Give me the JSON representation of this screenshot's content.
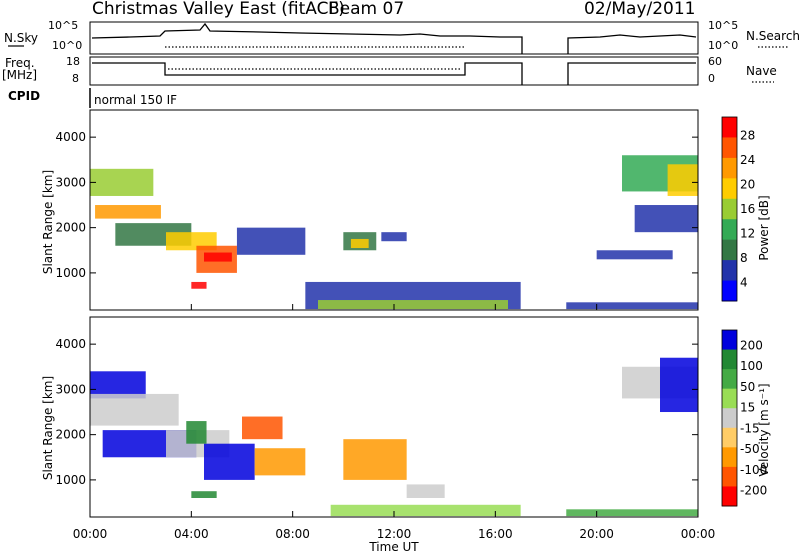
{
  "header": {
    "title": "Christmas Valley East (fitACF)",
    "beam": "Beam 07",
    "date": "02/May/2011"
  },
  "top_panels": {
    "nsky_label": "N.Sky",
    "nsky_ticks": [
      "10^5",
      "10^0"
    ],
    "nsearch_label": "N.Search",
    "nsearch_ticks": [
      "10^5",
      "10^0"
    ],
    "freq_label": "Freq.",
    "freq_unit": "[MHz]",
    "freq_ticks": [
      "18",
      "8"
    ],
    "nave_label": "Nave",
    "nave_ticks": [
      "60",
      "0"
    ],
    "cpid_label": "CPID",
    "cpid_value": "normal 150 IF"
  },
  "chart_data": [
    {
      "type": "heatmap",
      "panel": "power",
      "xlabel": "",
      "ylabel": "Slant Range [km]",
      "xlim": [
        0,
        24
      ],
      "ylim": [
        180,
        4600
      ],
      "yticks": [
        "4000",
        "3000",
        "2000",
        "1000"
      ],
      "colorbar_label": "Power [dB]",
      "colorbar_ticks": [
        "28",
        "24",
        "20",
        "16",
        "12",
        "8",
        "4"
      ],
      "colors": [
        "#ff0000",
        "#ff5500",
        "#ff9900",
        "#ffcc00",
        "#99cc33",
        "#33aa55",
        "#337744",
        "#2233aa",
        "#0000ff"
      ],
      "regions": [
        {
          "t0": 0.0,
          "t1": 2.5,
          "r0": 2700,
          "r1": 3300,
          "c": 4
        },
        {
          "t0": 0.2,
          "t1": 2.8,
          "r0": 2200,
          "r1": 2500,
          "c": 2
        },
        {
          "t0": 1.0,
          "t1": 4.0,
          "r0": 1600,
          "r1": 2100,
          "c": 6
        },
        {
          "t0": 3.0,
          "t1": 5.0,
          "r0": 1500,
          "r1": 1900,
          "c": 3
        },
        {
          "t0": 4.2,
          "t1": 5.8,
          "r0": 1000,
          "r1": 1600,
          "c": 1
        },
        {
          "t0": 4.5,
          "t1": 5.6,
          "r0": 1250,
          "r1": 1450,
          "c": 0
        },
        {
          "t0": 4.0,
          "t1": 4.6,
          "r0": 650,
          "r1": 800,
          "c": 0
        },
        {
          "t0": 5.8,
          "t1": 8.5,
          "r0": 1400,
          "r1": 2000,
          "c": 7
        },
        {
          "t0": 10.0,
          "t1": 11.3,
          "r0": 1500,
          "r1": 1900,
          "c": 6
        },
        {
          "t0": 10.3,
          "t1": 11.0,
          "r0": 1550,
          "r1": 1750,
          "c": 3
        },
        {
          "t0": 11.5,
          "t1": 12.5,
          "r0": 1700,
          "r1": 1900,
          "c": 7
        },
        {
          "t0": 8.5,
          "t1": 17.0,
          "r0": 200,
          "r1": 800,
          "c": 7
        },
        {
          "t0": 9.0,
          "t1": 16.5,
          "r0": 200,
          "r1": 400,
          "c": 4
        },
        {
          "t0": 18.8,
          "t1": 24.0,
          "r0": 200,
          "r1": 350,
          "c": 7
        },
        {
          "t0": 20.0,
          "t1": 23.0,
          "r0": 1300,
          "r1": 1500,
          "c": 7
        },
        {
          "t0": 21.0,
          "t1": 24.0,
          "r0": 2800,
          "r1": 3600,
          "c": 5
        },
        {
          "t0": 22.8,
          "t1": 24.0,
          "r0": 2700,
          "r1": 3400,
          "c": 3
        },
        {
          "t0": 21.5,
          "t1": 24.0,
          "r0": 1900,
          "r1": 2500,
          "c": 7
        }
      ]
    },
    {
      "type": "heatmap",
      "panel": "velocity",
      "xlabel": "Time UT",
      "ylabel": "Slant Range [km]",
      "xlim": [
        0,
        24
      ],
      "ylim": [
        180,
        4600
      ],
      "yticks": [
        "4000",
        "3000",
        "2000",
        "1000"
      ],
      "xticks": [
        "00:00",
        "04:00",
        "08:00",
        "12:00",
        "16:00",
        "20:00",
        "00:00"
      ],
      "colorbar_label": "Velocity [m s⁻¹]",
      "colorbar_ticks": [
        "200",
        "100",
        "50",
        "15",
        "-15",
        "-50",
        "-100",
        "-200"
      ],
      "colors": [
        "#0000dd",
        "#228833",
        "#44aa44",
        "#99dd55",
        "#cccccc",
        "#ffcc66",
        "#ff9900",
        "#ff5500",
        "#ff0000"
      ],
      "regions": [
        {
          "t0": 0.0,
          "t1": 2.2,
          "r0": 2800,
          "r1": 3400,
          "c": 0
        },
        {
          "t0": 0.0,
          "t1": 3.5,
          "r0": 2200,
          "r1": 2900,
          "c": 4
        },
        {
          "t0": 0.5,
          "t1": 4.2,
          "r0": 1500,
          "r1": 2100,
          "c": 0
        },
        {
          "t0": 3.0,
          "t1": 5.5,
          "r0": 1500,
          "r1": 2100,
          "c": 4
        },
        {
          "t0": 4.5,
          "t1": 6.5,
          "r0": 1000,
          "r1": 1800,
          "c": 0
        },
        {
          "t0": 3.8,
          "t1": 4.6,
          "r0": 1800,
          "r1": 2300,
          "c": 1
        },
        {
          "t0": 6.0,
          "t1": 7.6,
          "r0": 1900,
          "r1": 2400,
          "c": 7
        },
        {
          "t0": 6.5,
          "t1": 8.5,
          "r0": 1100,
          "r1": 1700,
          "c": 6
        },
        {
          "t0": 10.0,
          "t1": 12.5,
          "r0": 1000,
          "r1": 1900,
          "c": 6
        },
        {
          "t0": 9.5,
          "t1": 17.0,
          "r0": 200,
          "r1": 450,
          "c": 3
        },
        {
          "t0": 18.8,
          "t1": 24.0,
          "r0": 200,
          "r1": 350,
          "c": 2
        },
        {
          "t0": 4.0,
          "t1": 5.0,
          "r0": 600,
          "r1": 750,
          "c": 1
        },
        {
          "t0": 21.0,
          "t1": 24.0,
          "r0": 2800,
          "r1": 3500,
          "c": 4
        },
        {
          "t0": 22.5,
          "t1": 24.0,
          "r0": 2500,
          "r1": 3700,
          "c": 0
        },
        {
          "t0": 12.5,
          "t1": 14.0,
          "r0": 600,
          "r1": 900,
          "c": 4
        }
      ]
    }
  ]
}
